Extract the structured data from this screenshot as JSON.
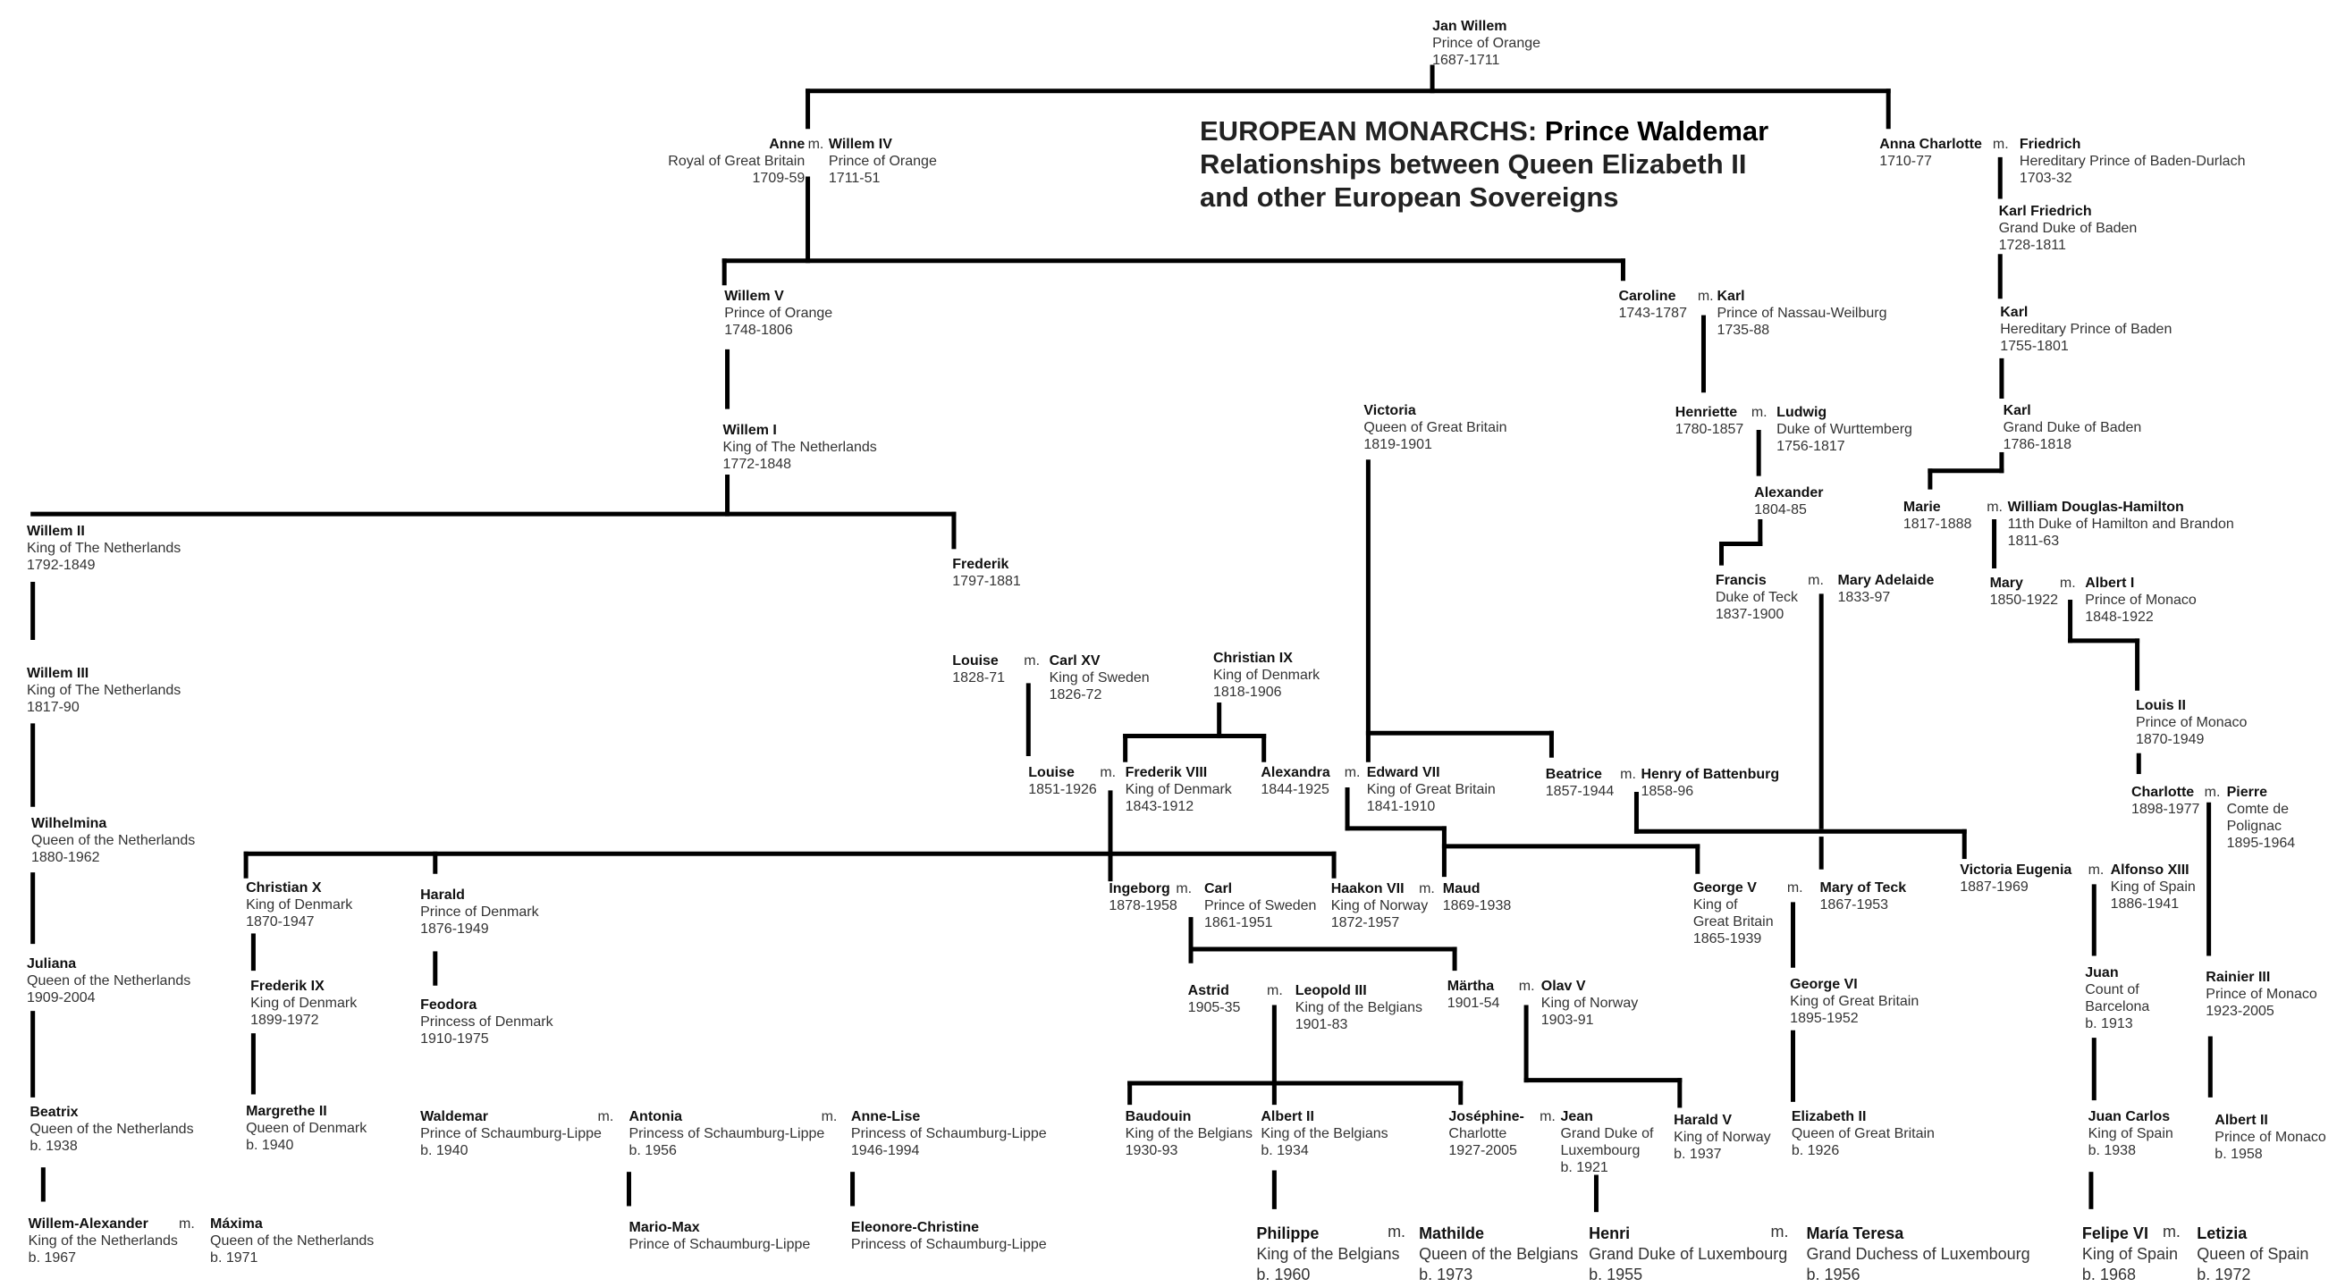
{
  "title": {
    "line1_prefix": "EUROPEAN MONARCHS:",
    "line1_accent": "Prince Waldemar",
    "line2": "Relationships between Queen Elizabeth II",
    "line3": "and other European Sovereigns"
  },
  "marriage_label": "m.",
  "persons": [
    {
      "name": "Jan Willem",
      "details": [
        "Prince of Orange",
        "1687-1711"
      ]
    },
    {
      "name": "Anne",
      "details": [
        "Royal of Great Britain",
        "1709-59"
      ]
    },
    {
      "name": "Willem  IV",
      "details": [
        "Prince of Orange",
        "1711-51"
      ]
    },
    {
      "name": "Anna Charlotte",
      "details": [
        "1710-77"
      ]
    },
    {
      "name": "Friedrich",
      "details": [
        "Hereditary Prince of Baden-Durlach",
        "1703-32"
      ]
    },
    {
      "name": "Karl Friedrich",
      "details": [
        "Grand Duke of Baden",
        "1728-1811"
      ]
    },
    {
      "name": "Willem V",
      "details": [
        "Prince of Orange",
        "1748-1806"
      ]
    },
    {
      "name": "Caroline",
      "details": [
        "1743-1787"
      ]
    },
    {
      "name": "Karl",
      "details": [
        "Prince of Nassau-Weilburg",
        "1735-88"
      ]
    },
    {
      "name": "Karl",
      "details": [
        "Hereditary Prince of Baden",
        "1755-1801"
      ]
    },
    {
      "name": "Victoria",
      "details": [
        "Queen of Great Britain",
        "1819-1901"
      ]
    },
    {
      "name": "Henriette",
      "details": [
        "1780-1857"
      ]
    },
    {
      "name": "Ludwig",
      "details": [
        "Duke of Wurttemberg",
        "1756-1817"
      ]
    },
    {
      "name": "Karl",
      "details": [
        "Grand Duke of Baden",
        "1786-1818"
      ]
    },
    {
      "name": "Willem I",
      "details": [
        "King of The Netherlands",
        "1772-1848"
      ]
    },
    {
      "name": "Alexander",
      "details": [
        "1804-85"
      ]
    },
    {
      "name": "Marie",
      "details": [
        "1817-1888"
      ]
    },
    {
      "name": "William Douglas-Hamilton",
      "details": [
        "11th Duke of Hamilton and Brandon",
        "1811-63"
      ]
    },
    {
      "name": "Willem II",
      "details": [
        "King of The Netherlands",
        "1792-1849"
      ]
    },
    {
      "name": "Frederik",
      "details": [
        "1797-1881"
      ]
    },
    {
      "name": "Francis",
      "details": [
        "Duke of Teck",
        "1837-1900"
      ]
    },
    {
      "name": "Mary Adelaide",
      "details": [
        "1833-97"
      ]
    },
    {
      "name": "Mary",
      "details": [
        "1850-1922"
      ]
    },
    {
      "name": "Albert I",
      "details": [
        "Prince of Monaco",
        "1848-1922"
      ]
    },
    {
      "name": "Louise",
      "details": [
        "1828-71"
      ]
    },
    {
      "name": "Carl XV",
      "details": [
        "King of Sweden",
        "1826-72"
      ]
    },
    {
      "name": "Christian IX",
      "details": [
        "King of Denmark",
        "1818-1906"
      ]
    },
    {
      "name": "Willem III",
      "details": [
        "King of The Netherlands",
        "1817-90"
      ]
    },
    {
      "name": "Louis II",
      "details": [
        "Prince of Monaco",
        "1870-1949"
      ]
    },
    {
      "name": "Louise",
      "details": [
        "1851-1926"
      ]
    },
    {
      "name": "Frederik VIII",
      "details": [
        "King of Denmark",
        "1843-1912"
      ]
    },
    {
      "name": "Alexandra",
      "details": [
        "1844-1925"
      ]
    },
    {
      "name": "Edward VII",
      "details": [
        "King of Great Britain",
        "1841-1910"
      ]
    },
    {
      "name": "Beatrice",
      "details": [
        "1857-1944"
      ]
    },
    {
      "name": "Henry of Battenburg",
      "details": [
        "1858-96"
      ]
    },
    {
      "name": "Charlotte",
      "details": [
        "1898-1977"
      ]
    },
    {
      "name": "Pierre",
      "details": [
        "Comte de",
        "Polignac",
        "1895-1964"
      ]
    },
    {
      "name": "Wilhelmina",
      "details": [
        "Queen of the Netherlands",
        "1880-1962"
      ]
    },
    {
      "name": "Victoria Eugenia",
      "details": [
        "1887-1969"
      ]
    },
    {
      "name": "Alfonso XIII",
      "details": [
        "King of Spain",
        "1886-1941"
      ]
    },
    {
      "name": "Christian X",
      "details": [
        "King of Denmark",
        "1870-1947"
      ]
    },
    {
      "name": "Harald",
      "details": [
        "Prince of Denmark",
        "1876-1949"
      ]
    },
    {
      "name": "Ingeborg",
      "details": [
        "1878-1958"
      ]
    },
    {
      "name": "Carl",
      "details": [
        "Prince of Sweden",
        "1861-1951"
      ]
    },
    {
      "name": "Haakon VII",
      "details": [
        "King of Norway",
        "1872-1957"
      ]
    },
    {
      "name": "Maud",
      "details": [
        "1869-1938"
      ]
    },
    {
      "name": "George V",
      "details": [
        "King of",
        "Great Britain",
        "1865-1939"
      ]
    },
    {
      "name": "Mary of Teck",
      "details": [
        "1867-1953"
      ]
    },
    {
      "name": "Juliana",
      "details": [
        "Queen of the Netherlands",
        "1909-2004"
      ]
    },
    {
      "name": "Frederik IX",
      "details": [
        "King of Denmark",
        "1899-1972"
      ]
    },
    {
      "name": "Feodora",
      "details": [
        "Princess of Denmark",
        "1910-1975"
      ]
    },
    {
      "name": "Astrid",
      "details": [
        "1905-35"
      ]
    },
    {
      "name": "Leopold III",
      "details": [
        "King of the Belgians",
        "1901-83"
      ]
    },
    {
      "name": "Märtha",
      "details": [
        "1901-54"
      ]
    },
    {
      "name": "Olav V",
      "details": [
        "King of Norway",
        "1903-91"
      ]
    },
    {
      "name": "George VI",
      "details": [
        "King of Great Britain",
        "1895-1952"
      ]
    },
    {
      "name": "Juan",
      "details": [
        "Count of",
        "Barcelona",
        "b. 1913"
      ]
    },
    {
      "name": "Rainier III",
      "details": [
        "Prince of Monaco",
        "1923-2005"
      ]
    },
    {
      "name": "Beatrix",
      "details": [
        "Queen of the Netherlands",
        "b. 1938"
      ]
    },
    {
      "name": "Margrethe II",
      "details": [
        "Queen of Denmark",
        "b. 1940"
      ]
    },
    {
      "name": "Waldemar",
      "details": [
        "Prince of Schaumburg-Lippe",
        "b. 1940"
      ]
    },
    {
      "name": "Antonia",
      "details": [
        "Princess of Schaumburg-Lippe",
        "b. 1956"
      ]
    },
    {
      "name": "Anne-Lise",
      "details": [
        "Princess of Schaumburg-Lippe",
        "1946-1994"
      ]
    },
    {
      "name": "Baudouin",
      "details": [
        "King of the Belgians",
        "1930-93"
      ]
    },
    {
      "name": "Albert II",
      "details": [
        "King of the Belgians",
        "b. 1934"
      ]
    },
    {
      "name": "Joséphine-",
      "details": [
        "Charlotte",
        "1927-2005"
      ]
    },
    {
      "name": "Jean",
      "details": [
        "Grand Duke of",
        "Luxembourg",
        "b. 1921"
      ]
    },
    {
      "name": "Harald V",
      "details": [
        "King of Norway",
        "b. 1937"
      ]
    },
    {
      "name": "Elizabeth II",
      "details": [
        "Queen of Great Britain",
        "b. 1926"
      ]
    },
    {
      "name": "Juan Carlos",
      "details": [
        "King of Spain",
        "b. 1938"
      ]
    },
    {
      "name": "Albert II",
      "details": [
        "Prince of Monaco",
        "b. 1958"
      ]
    },
    {
      "name": "Willem-Alexander",
      "details": [
        "King of the Netherlands",
        "b. 1967"
      ]
    },
    {
      "name": "Máxima",
      "details": [
        "Queen of the Netherlands",
        "b. 1971"
      ]
    },
    {
      "name": "Mario-Max",
      "details": [
        "Prince of Schaumburg-Lippe"
      ]
    },
    {
      "name": "Eleonore-Christine",
      "details": [
        "Princess of Schaumburg-Lippe"
      ]
    },
    {
      "name": "Philippe",
      "details": [
        "King of the Belgians",
        "b. 1960"
      ]
    },
    {
      "name": "Mathilde",
      "details": [
        "Queen of the Belgians",
        "b. 1973"
      ]
    },
    {
      "name": "Henri",
      "details": [
        "Grand Duke of Luxembourg",
        "b. 1955"
      ]
    },
    {
      "name": "María Teresa",
      "details": [
        "Grand Duchess of Luxembourg",
        "b. 1956"
      ]
    },
    {
      "name": "Felipe VI",
      "details": [
        "King of Spain",
        "b. 1968"
      ]
    },
    {
      "name": "Letizia",
      "details": [
        "Queen of Spain",
        "b. 1972"
      ]
    }
  ]
}
